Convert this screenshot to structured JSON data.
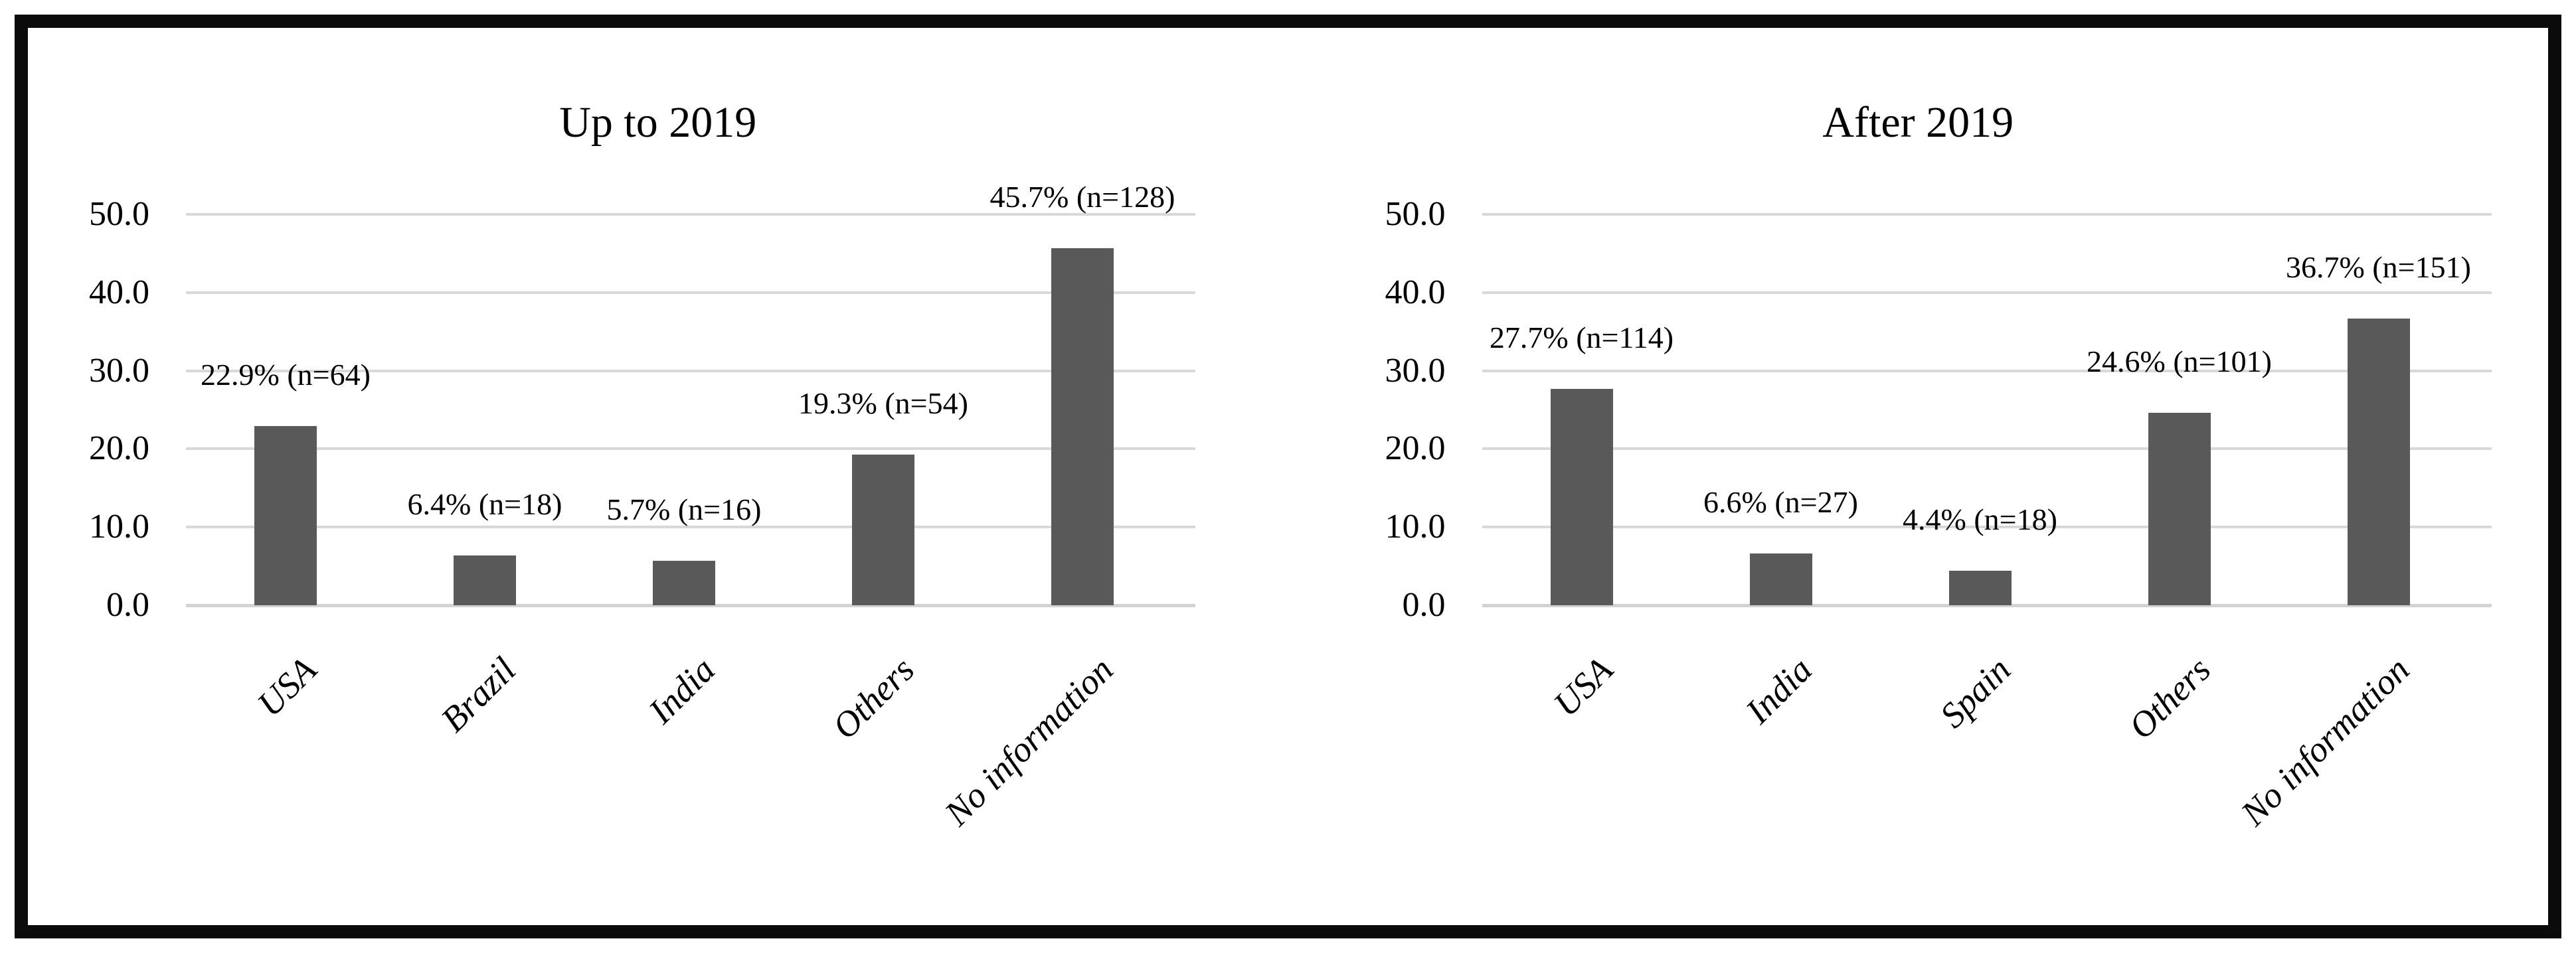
{
  "figure": {
    "description": "Two side-by-side bar charts of publication country distribution",
    "border_color": "#0a0a0a",
    "background_color": "#ffffff"
  },
  "colors": {
    "bar": "#595959",
    "gridline": "#d9d9d9",
    "axis_line": "#d3d3d3",
    "text": "#000000"
  },
  "chart_data": [
    {
      "type": "bar",
      "title": "Up to 2019",
      "categories": [
        "USA",
        "Brazil",
        "India",
        "Others",
        "No information"
      ],
      "values": [
        22.9,
        6.4,
        5.7,
        19.3,
        45.7
      ],
      "bar_labels": [
        "22.9% (n=64)",
        "6.4% (n=18)",
        "5.7% (n=16)",
        "19.3% (n=54)",
        "45.7% (n=128)"
      ],
      "xlabel": "",
      "ylabel": "",
      "ylim": [
        0,
        50
      ],
      "yticks": [
        0,
        10,
        20,
        30,
        40,
        50
      ],
      "ytick_labels": [
        "0.0",
        "10.0",
        "20.0",
        "30.0",
        "40.0",
        "50.0"
      ],
      "grid": true,
      "legend": false
    },
    {
      "type": "bar",
      "title": "After 2019",
      "categories": [
        "USA",
        "India",
        "Spain",
        "Others",
        "No information"
      ],
      "values": [
        27.7,
        6.6,
        4.4,
        24.6,
        36.7
      ],
      "bar_labels": [
        "27.7% (n=114)",
        "6.6% (n=27)",
        "4.4% (n=18)",
        "24.6% (n=101)",
        "36.7% (n=151)"
      ],
      "xlabel": "",
      "ylabel": "",
      "ylim": [
        0,
        50
      ],
      "yticks": [
        0,
        10,
        20,
        30,
        40,
        50
      ],
      "ytick_labels": [
        "0.0",
        "10.0",
        "20.0",
        "30.0",
        "40.0",
        "50.0"
      ],
      "grid": true,
      "legend": false
    }
  ]
}
